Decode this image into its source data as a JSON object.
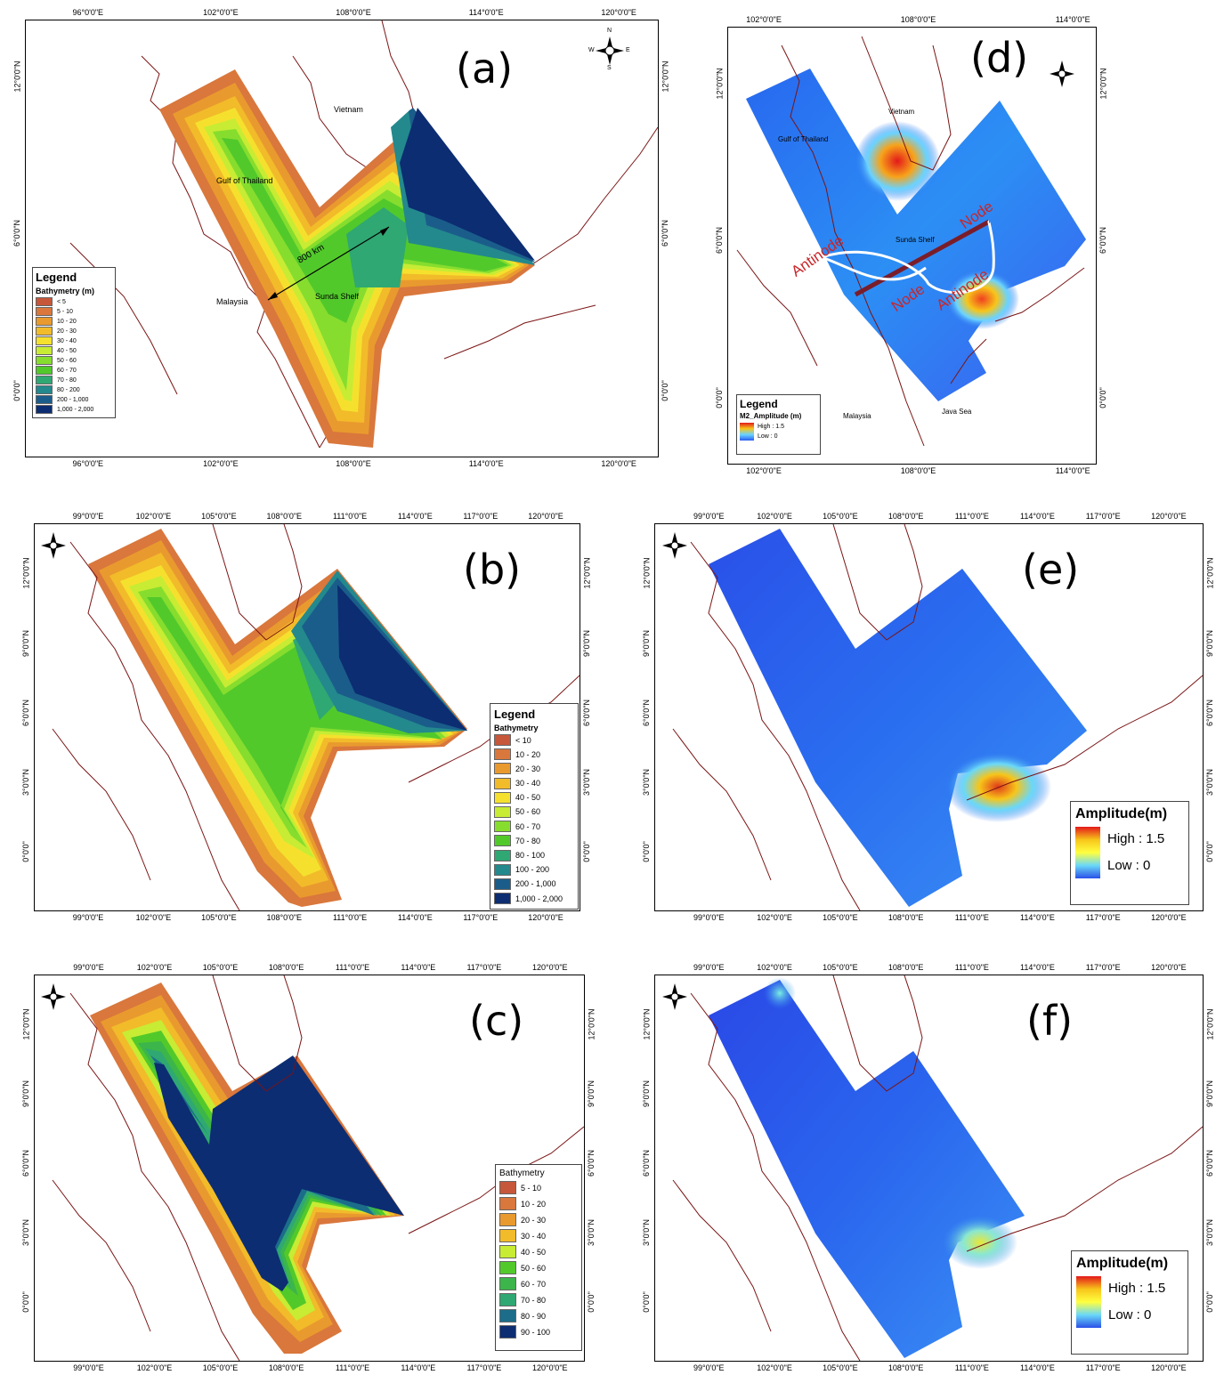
{
  "panels": {
    "a": {
      "label": "(a)",
      "top_ticks": [
        "96°0'0\"E",
        "102°0'0\"E",
        "108°0'0\"E",
        "114°0'0\"E",
        "120°0'0\"E"
      ],
      "bottom_ticks": [
        "96°0'0\"E",
        "102°0'0\"E",
        "108°0'0\"E",
        "114°0'0\"E",
        "120°0'0\"E"
      ],
      "left_ticks": [
        "12°0'0\"N",
        "6°0'0\"N",
        "0°0'0\""
      ],
      "right_ticks": [
        "12°0'0\"N",
        "6°0'0\"N",
        "0°0'0\""
      ],
      "places": {
        "vietnam": "Vietnam",
        "gulf": "Gulf of Thailand",
        "malaysia": "Malaysia",
        "sunda": "Sunda Shelf",
        "distance": "800 km"
      },
      "legend": {
        "title": "Legend",
        "subtitle": "Bathymetry (m)",
        "items": [
          {
            "label": "< 5",
            "color": "#c7573a"
          },
          {
            "label": "5 - 10",
            "color": "#d9773c"
          },
          {
            "label": "10 - 20",
            "color": "#e99a2e"
          },
          {
            "label": "20 - 30",
            "color": "#f2bb2a"
          },
          {
            "label": "30 - 40",
            "color": "#f5e12d"
          },
          {
            "label": "40 - 50",
            "color": "#c7ec33"
          },
          {
            "label": "50 - 60",
            "color": "#86dd2e"
          },
          {
            "label": "60 - 70",
            "color": "#52c92b"
          },
          {
            "label": "70 - 80",
            "color": "#2fa873"
          },
          {
            "label": "80 - 200",
            "color": "#23898d"
          },
          {
            "label": "200 - 1,000",
            "color": "#1b5d8a"
          },
          {
            "label": "1,000 - 2,000",
            "color": "#0c2d72"
          }
        ]
      }
    },
    "b": {
      "label": "(b)",
      "top_ticks": [
        "99°0'0\"E",
        "102°0'0\"E",
        "105°0'0\"E",
        "108°0'0\"E",
        "111°0'0\"E",
        "114°0'0\"E",
        "117°0'0\"E",
        "120°0'0\"E"
      ],
      "bottom_ticks": [
        "99°0'0\"E",
        "102°0'0\"E",
        "105°0'0\"E",
        "108°0'0\"E",
        "111°0'0\"E",
        "114°0'0\"E",
        "117°0'0\"E",
        "120°0'0\"E"
      ],
      "left_ticks": [
        "12°0'0\"N",
        "9°0'0\"N",
        "6°0'0\"N",
        "3°0'0\"N",
        "0°0'0\""
      ],
      "right_ticks": [
        "12°0'0\"N",
        "9°0'0\"N",
        "6°0'0\"N",
        "3°0'0\"N",
        "0°0'0\""
      ],
      "legend": {
        "title": "Legend",
        "subtitle": "Bathymetry",
        "items": [
          {
            "label": "< 10",
            "color": "#c7573a"
          },
          {
            "label": "10 - 20",
            "color": "#d9773c"
          },
          {
            "label": "20 - 30",
            "color": "#e99a2e"
          },
          {
            "label": "30 - 40",
            "color": "#f2bb2a"
          },
          {
            "label": "40 - 50",
            "color": "#f5e12d"
          },
          {
            "label": "50 - 60",
            "color": "#c7ec33"
          },
          {
            "label": "60 - 70",
            "color": "#86dd2e"
          },
          {
            "label": "70 - 80",
            "color": "#52c92b"
          },
          {
            "label": "80 - 100",
            "color": "#2fa873"
          },
          {
            "label": "100 - 200",
            "color": "#23898d"
          },
          {
            "label": "200 - 1,000",
            "color": "#1b5d8a"
          },
          {
            "label": "1,000 - 2,000",
            "color": "#0c2d72"
          }
        ]
      }
    },
    "c": {
      "label": "(c)",
      "top_ticks": [
        "99°0'0\"E",
        "102°0'0\"E",
        "105°0'0\"E",
        "108°0'0\"E",
        "111°0'0\"E",
        "114°0'0\"E",
        "117°0'0\"E",
        "120°0'0\"E"
      ],
      "bottom_ticks": [
        "99°0'0\"E",
        "102°0'0\"E",
        "105°0'0\"E",
        "108°0'0\"E",
        "111°0'0\"E",
        "114°0'0\"E",
        "117°0'0\"E",
        "120°0'0\"E"
      ],
      "left_ticks": [
        "12°0'0\"N",
        "9°0'0\"N",
        "6°0'0\"N",
        "3°0'0\"N",
        "0°0'0\""
      ],
      "right_ticks": [
        "12°0'0\"N",
        "9°0'0\"N",
        "6°0'0\"N",
        "3°0'0\"N",
        "0°0'0\""
      ],
      "legend": {
        "title": "",
        "subtitle": "Bathymetry",
        "items": [
          {
            "label": "5 - 10",
            "color": "#c7573a"
          },
          {
            "label": "10 - 20",
            "color": "#d9773c"
          },
          {
            "label": "20 - 30",
            "color": "#e99a2e"
          },
          {
            "label": "30 - 40",
            "color": "#f2bb2a"
          },
          {
            "label": "40 - 50",
            "color": "#c7ec33"
          },
          {
            "label": "50 - 60",
            "color": "#52c92b"
          },
          {
            "label": "60 - 70",
            "color": "#3cb54a"
          },
          {
            "label": "70 - 80",
            "color": "#2fa873"
          },
          {
            "label": "80 - 90",
            "color": "#1b6d8a"
          },
          {
            "label": "90 - 100",
            "color": "#0c2d72"
          }
        ]
      }
    },
    "d": {
      "label": "(d)",
      "top_ticks": [
        "102°0'0\"E",
        "108°0'0\"E",
        "114°0'0\"E"
      ],
      "bottom_ticks": [
        "102°0'0\"E",
        "108°0'0\"E",
        "114°0'0\"E"
      ],
      "left_ticks": [
        "12°0'0\"N",
        "6°0'0\"N",
        "0°0'0\""
      ],
      "right_ticks": [
        "12°0'0\"N",
        "6°0'0\"N",
        "0°0'0\""
      ],
      "places": {
        "vietnam": "Vietnam",
        "gulf": "Gulf of Thailand",
        "malaysia": "Malaysia",
        "sunda": "Sunda Shelf",
        "java": "Java Sea"
      },
      "annotations": {
        "antinode_left": "Antinode",
        "antinode_right": "Antinode",
        "node_left": "Node",
        "node_right": "Node"
      },
      "legend": {
        "title": "Legend",
        "subtitle": "M2_Amplitude (m)",
        "high": "High : 1.5",
        "low": "Low : 0"
      }
    },
    "e": {
      "label": "(e)",
      "top_ticks": [
        "99°0'0\"E",
        "102°0'0\"E",
        "105°0'0\"E",
        "108°0'0\"E",
        "111°0'0\"E",
        "114°0'0\"E",
        "117°0'0\"E",
        "120°0'0\"E"
      ],
      "bottom_ticks": [
        "99°0'0\"E",
        "102°0'0\"E",
        "105°0'0\"E",
        "108°0'0\"E",
        "111°0'0\"E",
        "114°0'0\"E",
        "117°0'0\"E",
        "120°0'0\"E"
      ],
      "left_ticks": [
        "12°0'0\"N",
        "9°0'0\"N",
        "6°0'0\"N",
        "3°0'0\"N",
        "0°0'0\""
      ],
      "right_ticks": [
        "12°0'0\"N",
        "9°0'0\"N",
        "6°0'0\"N",
        "3°0'0\"N",
        "0°0'0\""
      ],
      "legend": {
        "title": "Amplitude(m)",
        "high": "High : 1.5",
        "low": "Low : 0"
      }
    },
    "f": {
      "label": "(f)",
      "top_ticks": [
        "99°0'0\"E",
        "102°0'0\"E",
        "105°0'0\"E",
        "108°0'0\"E",
        "111°0'0\"E",
        "114°0'0\"E",
        "117°0'0\"E",
        "120°0'0\"E"
      ],
      "bottom_ticks": [
        "99°0'0\"E",
        "102°0'0\"E",
        "105°0'0\"E",
        "108°0'0\"E",
        "111°0'0\"E",
        "114°0'0\"E",
        "117°0'0\"E",
        "120°0'0\"E"
      ],
      "left_ticks": [
        "12°0'0\"N",
        "9°0'0\"N",
        "6°0'0\"N",
        "3°0'0\"N",
        "0°0'0\""
      ],
      "right_ticks": [
        "12°0'0\"N",
        "9°0'0\"N",
        "6°0'0\"N",
        "3°0'0\"N",
        "0°0'0\""
      ],
      "legend": {
        "title": "Amplitude(m)",
        "high": "High : 1.5",
        "low": "Low : 0"
      }
    }
  },
  "compass": {
    "n": "N",
    "s": "S",
    "e": "E",
    "w": "W"
  },
  "colors": {
    "coast": "#7a1414",
    "node_line": "#7a1d2a",
    "antinode_curve": "#ffffff",
    "annotation": "#c8262a"
  }
}
